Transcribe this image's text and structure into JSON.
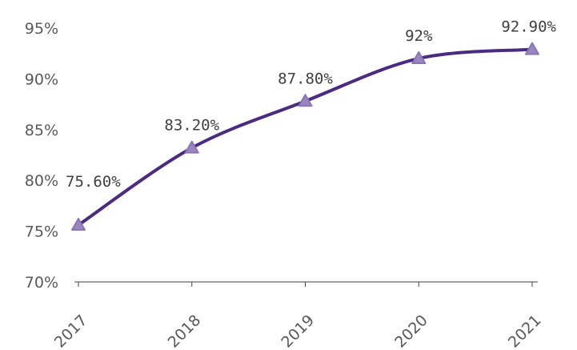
{
  "chart_data": {
    "type": "line",
    "title": "",
    "xlabel": "",
    "ylabel": "",
    "categories": [
      "2017",
      "2018",
      "2019",
      "2020",
      "2021"
    ],
    "series": [
      {
        "name": "",
        "values": [
          75.6,
          83.2,
          87.8,
          92.0,
          92.9
        ],
        "labels": [
          "75.60%",
          "83.20%",
          "87.80%",
          "92%",
          "92.90%"
        ]
      }
    ],
    "ylim": [
      70,
      95
    ],
    "yticks": [
      70,
      75,
      80,
      85,
      90,
      95
    ],
    "ytick_labels": [
      "70%",
      "75%",
      "80%",
      "85%",
      "90%",
      "95%"
    ],
    "grid": false,
    "legend": "none",
    "colors": {
      "line": "#4b2a82",
      "marker_fill": "#9a86be",
      "marker_stroke": "#8a75b3",
      "axis": "#404040"
    }
  }
}
